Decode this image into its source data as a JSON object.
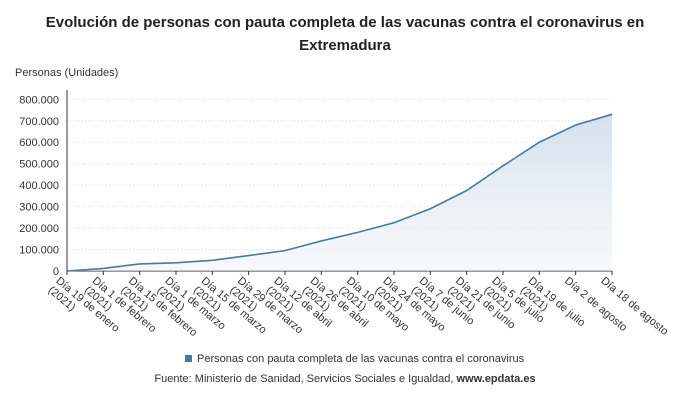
{
  "chart_data": {
    "type": "line",
    "title": [
      "Evolución de personas con pauta completa de las vacunas contra el coronavirus en",
      "Extremadura"
    ],
    "y_label": "Personas (Unidades)",
    "categories": [
      "Día 19 de enero (2021)",
      "Día 1 de febrero (2021)",
      "Día 15 de febrero (2021)",
      "Día 1 de marzo (2021)",
      "Día 15 de marzo (2021)",
      "Día 29 de marzo (2021)",
      "Día 12 de abril (2021)",
      "Día 26 de abril (2021)",
      "Día 10 de mayo (2021)",
      "Día 24 de mayo (2021)",
      "Día 7 de junio (2021)",
      "Día 21 de junio (2021)",
      "Día 5 de julio (2021)",
      "Día 19 de julio (2021)",
      "Día 2 de agosto",
      "Día 18 de agosto"
    ],
    "series": [
      {
        "name": "Personas con pauta completa de las vacunas contra el coronavirus",
        "color": "#4a7aa0",
        "values": [
          0,
          12000,
          33000,
          38000,
          50000,
          72000,
          95000,
          140000,
          180000,
          225000,
          290000,
          375000,
          490000,
          600000,
          680000,
          730000
        ]
      }
    ],
    "ylim": [
      0,
      820000
    ],
    "yticks": [
      0,
      {
        "value": 100000,
        "label": "100.000"
      },
      {
        "value": 200000,
        "label": "200.000"
      },
      {
        "value": 300000,
        "label": "300.000"
      },
      {
        "value": 400000,
        "label": "400.000"
      },
      {
        "value": 500000,
        "label": "500.000"
      },
      {
        "value": 600000,
        "label": "600.000"
      },
      {
        "value": 700000,
        "label": "700.000"
      },
      {
        "value": 800000,
        "label": "800.000"
      }
    ],
    "grid": true,
    "source": "Fuente: Ministerio de Sanidad, Servicios Sociales e Igualdad,",
    "source_link": "www.epdata.es"
  }
}
